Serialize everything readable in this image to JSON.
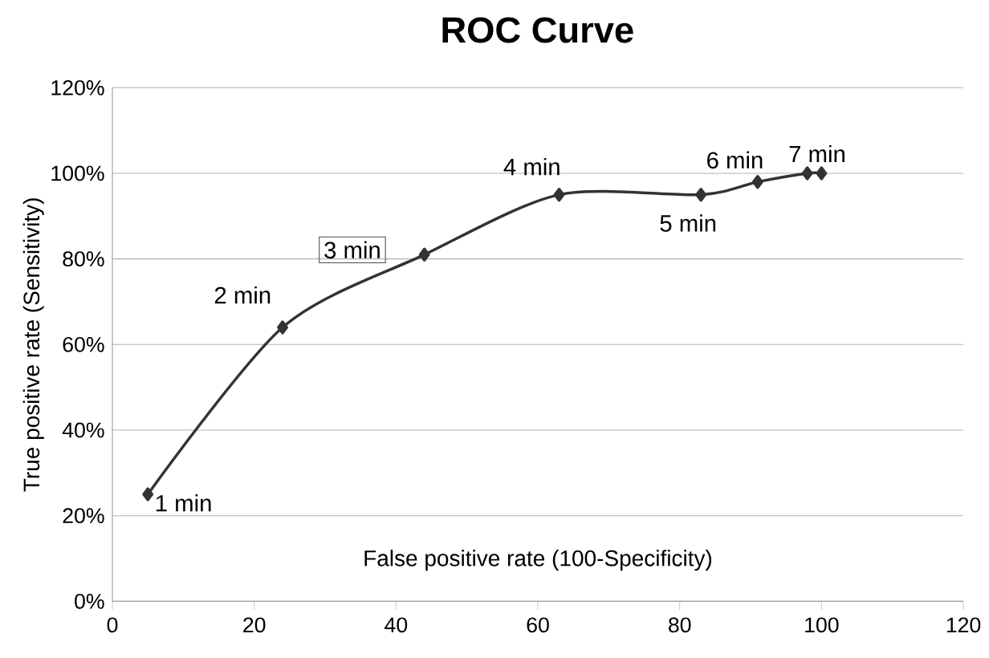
{
  "chart_data": {
    "type": "line",
    "title": "ROC Curve",
    "xlabel": "False positive rate (100-Specificity)",
    "ylabel": "True positive rate (Sensitivity)",
    "x": [
      5,
      24,
      44,
      63,
      83,
      91,
      98,
      100
    ],
    "values": [
      25,
      64,
      81,
      95,
      95,
      98,
      100,
      100
    ],
    "color": "#333333",
    "marker": "diamond",
    "line_style": "solid",
    "grid": "y",
    "xlim": [
      0,
      120
    ],
    "xticks": [
      0,
      20,
      40,
      60,
      80,
      100,
      120
    ],
    "ylim": [
      0,
      120
    ],
    "yticks": [
      {
        "value": 0,
        "label": "0%"
      },
      {
        "value": 20,
        "label": "20%"
      },
      {
        "value": 40,
        "label": "40%"
      },
      {
        "value": 60,
        "label": "60%"
      },
      {
        "value": 80,
        "label": "80%"
      },
      {
        "value": 100,
        "label": "100%"
      },
      {
        "value": 120,
        "label": "120%"
      }
    ],
    "annotations": [
      {
        "text": "1 min",
        "x": 5,
        "y": 25
      },
      {
        "text": "2 min",
        "x": 24,
        "y": 64
      },
      {
        "text": "3 min",
        "x": 44,
        "y": 81
      },
      {
        "text": "4 min",
        "x": 63,
        "y": 95
      },
      {
        "text": "5 min",
        "x": 83,
        "y": 95
      },
      {
        "text": "6 min",
        "x": 91,
        "y": 98
      },
      {
        "text": "7 min",
        "x": 100,
        "y": 100
      }
    ]
  }
}
